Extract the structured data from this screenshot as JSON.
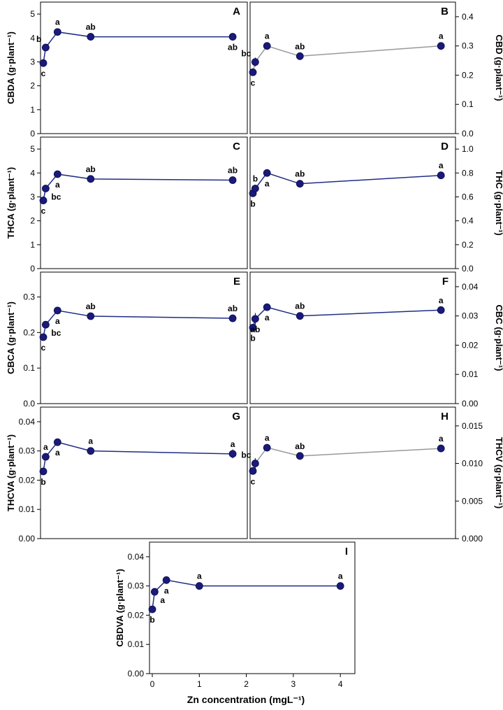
{
  "figure": {
    "x_axis_label": "Zn concentration (mgL⁻¹)",
    "line_colors": {
      "navy": "#1f2d86",
      "gray": "#999999"
    },
    "marker_color": "#1a1a7a"
  },
  "chart_data": [
    {
      "id": "A",
      "type": "line",
      "title": "",
      "letter": "A",
      "ylabel": "CBDA (g·plant⁻¹)",
      "ylim": [
        0,
        5.5
      ],
      "yticks": [
        "0",
        "1",
        "2",
        "3",
        "4",
        "5"
      ],
      "ytick_values": [
        0,
        1,
        2,
        3,
        4,
        5
      ],
      "y_axis_side": "left",
      "line_color": "navy",
      "x": [
        0,
        0.05,
        0.3,
        1,
        4
      ],
      "y": [
        2.95,
        3.6,
        4.25,
        4.05,
        4.05
      ],
      "err": [
        0,
        0.1,
        0.08,
        0.05,
        0.07
      ],
      "labels": [
        "c",
        "b",
        "a",
        "ab",
        "ab"
      ],
      "label_pos": [
        "below",
        "left",
        "above",
        "above",
        "below"
      ]
    },
    {
      "id": "B",
      "type": "line",
      "title": "",
      "letter": "B",
      "ylabel": "CBD (g·plant⁻¹)",
      "ylim": [
        0,
        0.45
      ],
      "yticks": [
        "0.0",
        "0.1",
        "0.2",
        "0.3",
        "0.4"
      ],
      "ytick_values": [
        0,
        0.1,
        0.2,
        0.3,
        0.4
      ],
      "y_axis_side": "right",
      "line_color": "gray",
      "x": [
        0,
        0.05,
        0.3,
        1,
        4
      ],
      "y": [
        0.21,
        0.245,
        0.3,
        0.265,
        0.3
      ],
      "err": [
        0,
        0.015,
        0.005,
        0.005,
        0.005
      ],
      "labels": [
        "c",
        "bc",
        "a",
        "ab",
        "a"
      ],
      "label_pos": [
        "below",
        "left",
        "above",
        "above",
        "above"
      ]
    },
    {
      "id": "C",
      "type": "line",
      "title": "",
      "letter": "C",
      "ylabel": "THCA (g·plant⁻¹)",
      "ylim": [
        0,
        5.5
      ],
      "yticks": [
        "0",
        "1",
        "2",
        "3",
        "4",
        "5"
      ],
      "ytick_values": [
        0,
        1,
        2,
        3,
        4,
        5
      ],
      "y_axis_side": "left",
      "line_color": "navy",
      "x": [
        0,
        0.05,
        0.3,
        1,
        4
      ],
      "y": [
        2.85,
        3.35,
        3.95,
        3.75,
        3.7
      ],
      "err": [
        0,
        0.15,
        0.05,
        0.05,
        0.1
      ],
      "labels": [
        "c",
        "bc",
        "a",
        "ab",
        "ab"
      ],
      "label_pos": [
        "below",
        "right",
        "below",
        "above",
        "above"
      ]
    },
    {
      "id": "D",
      "type": "line",
      "title": "",
      "letter": "D",
      "ylabel": "THC (g·plant⁻¹)",
      "ylim": [
        0,
        1.1
      ],
      "yticks": [
        "0.0",
        "0.2",
        "0.4",
        "0.6",
        "0.8",
        "1.0"
      ],
      "ytick_values": [
        0,
        0.2,
        0.4,
        0.6,
        0.8,
        1.0
      ],
      "y_axis_side": "right",
      "line_color": "navy",
      "x": [
        0,
        0.05,
        0.3,
        1,
        4
      ],
      "y": [
        0.63,
        0.67,
        0.8,
        0.71,
        0.78
      ],
      "err": [
        0,
        0.03,
        0.01,
        0.01,
        0.01
      ],
      "labels": [
        "b",
        "b",
        "a",
        "ab",
        "a"
      ],
      "label_pos": [
        "below",
        "above",
        "below",
        "above",
        "above"
      ]
    },
    {
      "id": "E",
      "type": "line",
      "title": "",
      "letter": "E",
      "ylabel": "CBCA  (g·plant⁻¹)",
      "ylim": [
        0,
        0.37
      ],
      "yticks": [
        "0.0",
        "0.1",
        "0.2",
        "0.3"
      ],
      "ytick_values": [
        0,
        0.1,
        0.2,
        0.3
      ],
      "y_axis_side": "left",
      "line_color": "navy",
      "x": [
        0,
        0.05,
        0.3,
        1,
        4
      ],
      "y": [
        0.187,
        0.222,
        0.262,
        0.246,
        0.24
      ],
      "err": [
        0,
        0.01,
        0.005,
        0.004,
        0.006
      ],
      "labels": [
        "c",
        "bc",
        "a",
        "ab",
        "ab"
      ],
      "label_pos": [
        "below",
        "right",
        "below",
        "above",
        "above"
      ]
    },
    {
      "id": "F",
      "type": "line",
      "title": "",
      "letter": "F",
      "ylabel": "CBC (g·plant⁻¹)",
      "ylim": [
        0,
        0.045
      ],
      "yticks": [
        "0.00",
        "0.01",
        "0.02",
        "0.03",
        "0.04"
      ],
      "ytick_values": [
        0,
        0.01,
        0.02,
        0.03,
        0.04
      ],
      "y_axis_side": "right",
      "line_color": "navy",
      "x": [
        0,
        0.05,
        0.3,
        1,
        4
      ],
      "y": [
        0.026,
        0.029,
        0.033,
        0.03,
        0.032
      ],
      "err": [
        0,
        0.002,
        0.001,
        0.001,
        0.001
      ],
      "labels": [
        "b",
        "ab",
        "a",
        "ab",
        "a"
      ],
      "label_pos": [
        "below",
        "below",
        "below",
        "above",
        "above"
      ]
    },
    {
      "id": "G",
      "type": "line",
      "title": "",
      "letter": "G",
      "ylabel": "THCVA (g·plant⁻¹)",
      "ylim": [
        0,
        0.045
      ],
      "yticks": [
        "0.00",
        "0.01",
        "0.02",
        "0.03",
        "0.04"
      ],
      "ytick_values": [
        0,
        0.01,
        0.02,
        0.03,
        0.04
      ],
      "y_axis_side": "left",
      "line_color": "navy",
      "x": [
        0,
        0.05,
        0.3,
        1,
        4
      ],
      "y": [
        0.023,
        0.028,
        0.033,
        0.03,
        0.029
      ],
      "err": [
        0,
        0.001,
        0.001,
        0.001,
        0.0015
      ],
      "labels": [
        "b",
        "a",
        "a",
        "a",
        "a"
      ],
      "label_pos": [
        "below",
        "above",
        "below",
        "above",
        "above"
      ]
    },
    {
      "id": "H",
      "type": "line",
      "title": "",
      "letter": "H",
      "ylabel": "THCV (g·plant⁻¹)",
      "ylim": [
        0,
        0.0175
      ],
      "yticks": [
        "0.000",
        "0.005",
        "0.010",
        "0.015"
      ],
      "ytick_values": [
        0,
        0.005,
        0.01,
        0.015
      ],
      "y_axis_side": "right",
      "line_color": "gray",
      "x": [
        0,
        0.05,
        0.3,
        1,
        4
      ],
      "y": [
        0.009,
        0.01,
        0.0121,
        0.011,
        0.012
      ],
      "err": [
        0,
        0.0007,
        0.0003,
        0.0002,
        0.0003
      ],
      "labels": [
        "c",
        "bc",
        "a",
        "ab",
        "a"
      ],
      "label_pos": [
        "below",
        "left",
        "above",
        "above",
        "above"
      ]
    },
    {
      "id": "I",
      "type": "line",
      "title": "",
      "letter": "I",
      "ylabel": "CBDVA (g·plant⁻¹)",
      "ylim": [
        0,
        0.045
      ],
      "yticks": [
        "0.00",
        "0.01",
        "0.02",
        "0.03",
        "0.04"
      ],
      "ytick_values": [
        0,
        0.01,
        0.02,
        0.03,
        0.04
      ],
      "y_axis_side": "left",
      "line_color": "navy",
      "x": [
        0,
        0.05,
        0.3,
        1,
        4
      ],
      "y": [
        0.022,
        0.028,
        0.032,
        0.03,
        0.03
      ],
      "err": [
        0,
        0.001,
        0.001,
        0.0005,
        0.0005
      ],
      "labels": [
        "b",
        "a",
        "a",
        "a",
        "a"
      ],
      "label_pos": [
        "below",
        "right",
        "below",
        "above",
        "above"
      ],
      "xticks": [
        "0",
        "1",
        "2",
        "3",
        "4"
      ],
      "xtick_values": [
        0,
        1,
        2,
        3,
        4
      ]
    }
  ]
}
